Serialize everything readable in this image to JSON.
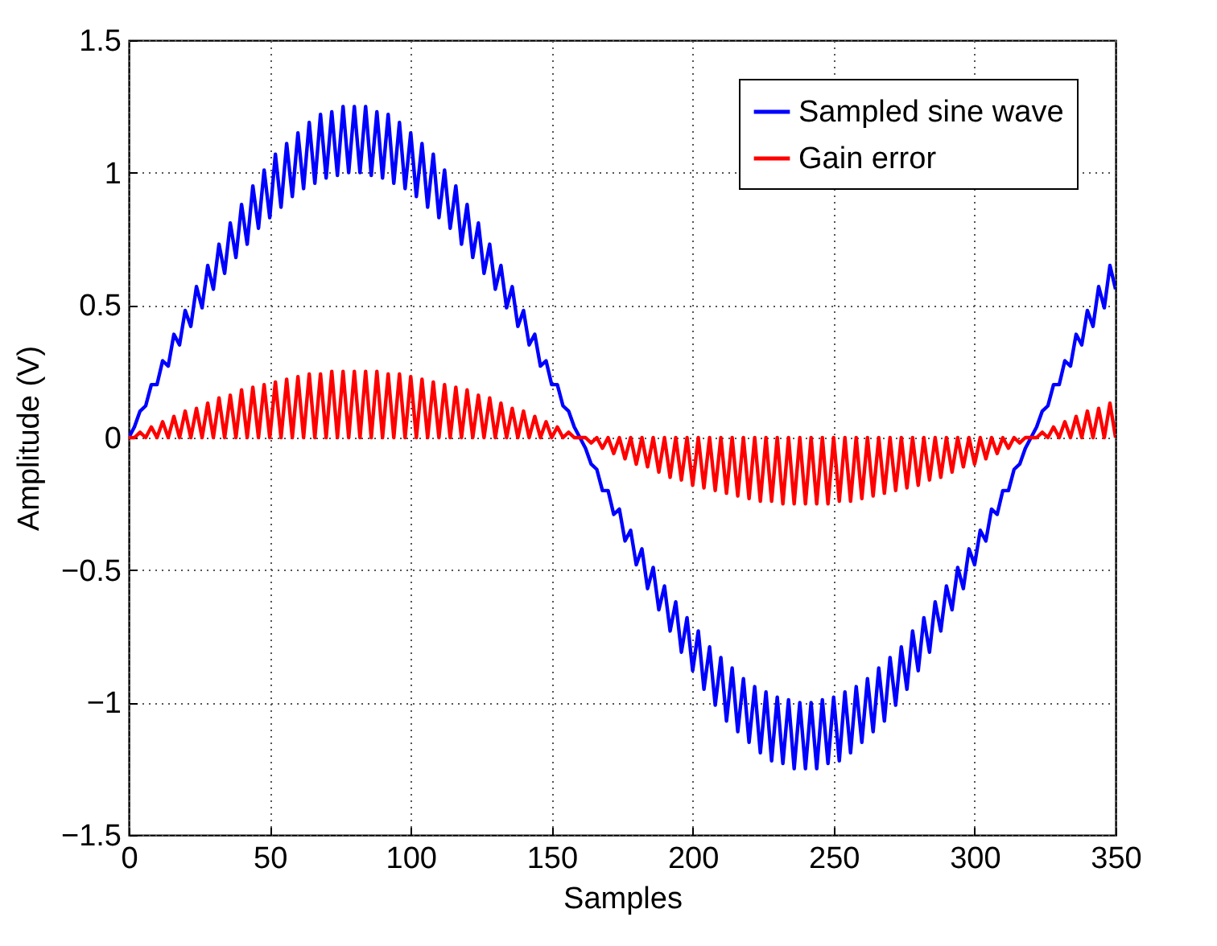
{
  "chart_data": {
    "type": "line",
    "xlabel": "Samples",
    "ylabel": "Amplitude (V)",
    "x": [
      0,
      2,
      4,
      6,
      8,
      10,
      12,
      14,
      16,
      18,
      20,
      22,
      24,
      26,
      28,
      30,
      32,
      34,
      36,
      38,
      40,
      42,
      44,
      46,
      48,
      50,
      52,
      54,
      56,
      58,
      60,
      62,
      64,
      66,
      68,
      70,
      72,
      74,
      76,
      78,
      80,
      82,
      84,
      86,
      88,
      90,
      92,
      94,
      96,
      98,
      100,
      102,
      104,
      106,
      108,
      110,
      112,
      114,
      116,
      118,
      120,
      122,
      124,
      126,
      128,
      130,
      132,
      134,
      136,
      138,
      140,
      142,
      144,
      146,
      148,
      150,
      152,
      154,
      156,
      158,
      160,
      162,
      164,
      166,
      168,
      170,
      172,
      174,
      176,
      178,
      180,
      182,
      184,
      186,
      188,
      190,
      192,
      194,
      196,
      198,
      200,
      202,
      204,
      206,
      208,
      210,
      212,
      214,
      216,
      218,
      220,
      222,
      224,
      226,
      228,
      230,
      232,
      234,
      236,
      238,
      240,
      242,
      244,
      246,
      248,
      250,
      252,
      254,
      256,
      258,
      260,
      262,
      264,
      266,
      268,
      270,
      272,
      274,
      276,
      278,
      280,
      282,
      284,
      286,
      288,
      290,
      292,
      294,
      296,
      298,
      300,
      302,
      304,
      306,
      308,
      310,
      312,
      314,
      316,
      318,
      320,
      322,
      324,
      326,
      328,
      330,
      332,
      334,
      336,
      338,
      340,
      342,
      344,
      346,
      348,
      350
    ],
    "series": [
      {
        "name": "Sampled sine wave",
        "color": "#0000ff",
        "values": [
          0,
          0.04,
          0.1,
          0.12,
          0.2,
          0.2,
          0.29,
          0.27,
          0.39,
          0.35,
          0.48,
          0.42,
          0.57,
          0.49,
          0.65,
          0.56,
          0.73,
          0.62,
          0.81,
          0.68,
          0.88,
          0.73,
          0.95,
          0.79,
          1.01,
          0.83,
          1.07,
          0.87,
          1.11,
          0.91,
          1.15,
          0.94,
          1.19,
          0.96,
          1.22,
          0.98,
          1.23,
          0.99,
          1.25,
          1.0,
          1.25,
          1.0,
          1.25,
          0.99,
          1.23,
          0.98,
          1.22,
          0.96,
          1.19,
          0.94,
          1.15,
          0.91,
          1.11,
          0.87,
          1.07,
          0.83,
          1.01,
          0.79,
          0.95,
          0.73,
          0.88,
          0.68,
          0.81,
          0.62,
          0.73,
          0.56,
          0.65,
          0.49,
          0.57,
          0.42,
          0.48,
          0.35,
          0.39,
          0.27,
          0.29,
          0.2,
          0.2,
          0.12,
          0.1,
          0.04,
          0,
          -0.04,
          -0.1,
          -0.12,
          -0.2,
          -0.2,
          -0.29,
          -0.27,
          -0.39,
          -0.35,
          -0.48,
          -0.42,
          -0.57,
          -0.49,
          -0.65,
          -0.56,
          -0.73,
          -0.62,
          -0.81,
          -0.68,
          -0.88,
          -0.73,
          -0.95,
          -0.79,
          -1.01,
          -0.83,
          -1.07,
          -0.87,
          -1.11,
          -0.91,
          -1.15,
          -0.94,
          -1.19,
          -0.96,
          -1.22,
          -0.98,
          -1.23,
          -0.99,
          -1.25,
          -1.0,
          -1.25,
          -1.0,
          -1.25,
          -0.99,
          -1.23,
          -0.98,
          -1.22,
          -0.96,
          -1.19,
          -0.94,
          -1.15,
          -0.91,
          -1.11,
          -0.87,
          -1.07,
          -0.83,
          -1.01,
          -0.79,
          -0.95,
          -0.73,
          -0.88,
          -0.68,
          -0.81,
          -0.62,
          -0.73,
          -0.56,
          -0.65,
          -0.49,
          -0.57,
          -0.42,
          -0.48,
          -0.35,
          -0.39,
          -0.27,
          -0.29,
          -0.2,
          -0.2,
          -0.12,
          -0.1,
          -0.04,
          0,
          0.04,
          0.1,
          0.12,
          0.2,
          0.2,
          0.29,
          0.27,
          0.39,
          0.35,
          0.48,
          0.42,
          0.57,
          0.49,
          0.65,
          0.56
        ]
      },
      {
        "name": "Gain error",
        "color": "#ff0000",
        "values": [
          0,
          0,
          0.02,
          0,
          0.04,
          0,
          0.06,
          0,
          0.08,
          0,
          0.1,
          0,
          0.11,
          0,
          0.13,
          0,
          0.15,
          0,
          0.16,
          0,
          0.18,
          0,
          0.19,
          0,
          0.2,
          0,
          0.21,
          0,
          0.22,
          0,
          0.23,
          0,
          0.24,
          0,
          0.24,
          0,
          0.25,
          0,
          0.25,
          0,
          0.25,
          0,
          0.25,
          0,
          0.25,
          0,
          0.24,
          0,
          0.24,
          0,
          0.23,
          0,
          0.22,
          0,
          0.21,
          0,
          0.2,
          0,
          0.19,
          0,
          0.18,
          0,
          0.16,
          0,
          0.15,
          0,
          0.13,
          0,
          0.11,
          0,
          0.1,
          0,
          0.08,
          0,
          0.06,
          0,
          0.04,
          0,
          0.02,
          0,
          0,
          0,
          -0.02,
          0,
          -0.04,
          0,
          -0.06,
          0,
          -0.08,
          0,
          -0.1,
          0,
          -0.11,
          0,
          -0.13,
          0,
          -0.15,
          0,
          -0.16,
          0,
          -0.18,
          0,
          -0.19,
          0,
          -0.2,
          0,
          -0.21,
          0,
          -0.22,
          0,
          -0.23,
          0,
          -0.24,
          0,
          -0.24,
          0,
          -0.25,
          0,
          -0.25,
          0,
          -0.25,
          0,
          -0.25,
          0,
          -0.25,
          0,
          -0.24,
          0,
          -0.24,
          0,
          -0.23,
          0,
          -0.22,
          0,
          -0.21,
          0,
          -0.2,
          0,
          -0.19,
          0,
          -0.18,
          0,
          -0.16,
          0,
          -0.15,
          0,
          -0.13,
          0,
          -0.11,
          0,
          -0.1,
          0,
          -0.08,
          0,
          -0.06,
          0,
          -0.04,
          0,
          -0.02,
          0,
          0,
          0,
          0.02,
          0,
          0.04,
          0,
          0.06,
          0,
          0.08,
          0,
          0.1,
          0,
          0.11,
          0,
          0.13,
          0
        ]
      }
    ],
    "xlim": [
      0,
      350
    ],
    "xticks": [
      0,
      50,
      100,
      150,
      200,
      250,
      300,
      350
    ],
    "ylim": [
      -1.5,
      1.5
    ],
    "yticks": [
      {
        "value": -1.5,
        "label": "−1.5"
      },
      {
        "value": -1,
        "label": "−1"
      },
      {
        "value": -0.5,
        "label": "−0.5"
      },
      0,
      0.5,
      1,
      1.5
    ],
    "grid": true,
    "legend": "top right",
    "line_style": "solid",
    "marker": "none"
  }
}
